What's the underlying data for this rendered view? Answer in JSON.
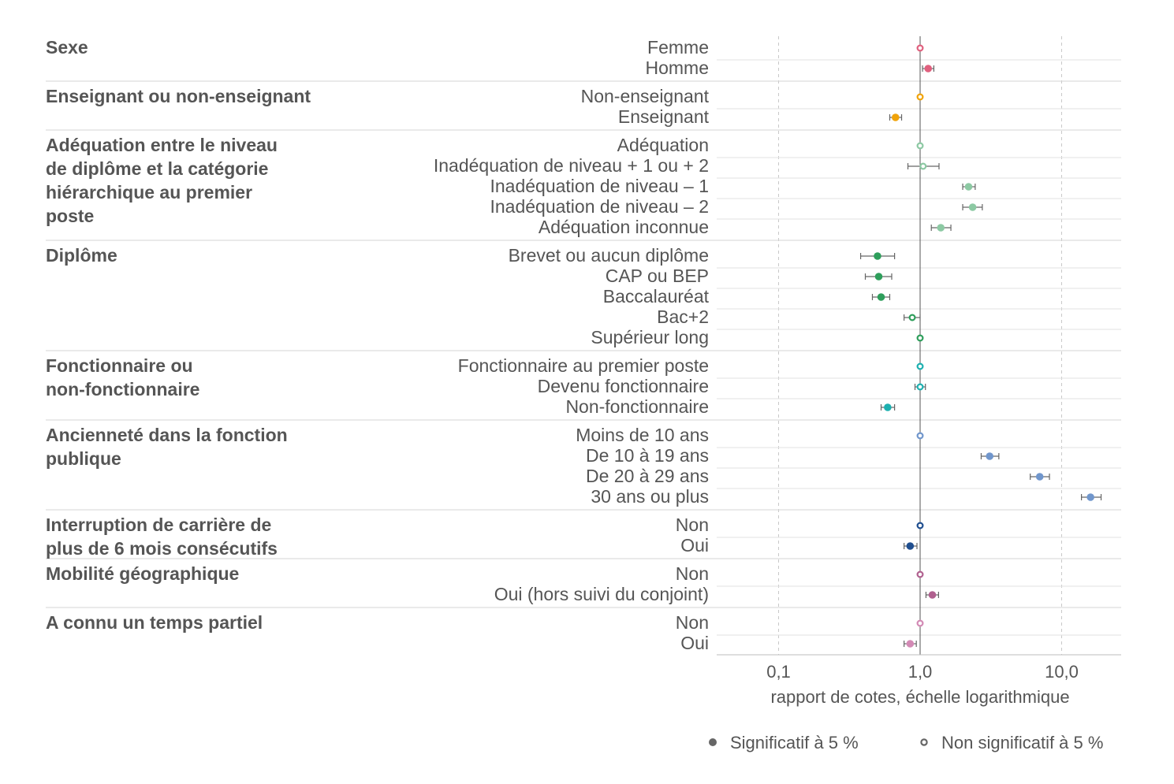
{
  "chart_data": {
    "type": "scatter",
    "xlabel": "rapport de cotes, échelle logarithmique",
    "x_scale": "log",
    "xlim": [
      0.04,
      25
    ],
    "x_ticks": [
      {
        "value": 0.1,
        "label": "0,1"
      },
      {
        "value": 1.0,
        "label": "1,0"
      },
      {
        "value": 10.0,
        "label": "10,0"
      }
    ],
    "reference_line": 1.0,
    "grid": true,
    "legend": {
      "position": "bottom-right",
      "significant": "Significatif à 5 %",
      "not_significant": "Non significatif à 5 %"
    },
    "groups": [
      {
        "label": "Sexe",
        "color": "#e0607e",
        "rows": [
          {
            "label": "Femme",
            "value": 1.0,
            "low": 1.0,
            "high": 1.0,
            "significant": false
          },
          {
            "label": "Homme",
            "value": 1.14,
            "low": 1.04,
            "high": 1.25,
            "significant": true
          }
        ]
      },
      {
        "label": "Enseignant ou non-enseignant",
        "color": "#f0a30a",
        "rows": [
          {
            "label": "Non-enseignant",
            "value": 1.0,
            "low": 1.0,
            "high": 1.0,
            "significant": false
          },
          {
            "label": "Enseignant",
            "value": 0.67,
            "low": 0.61,
            "high": 0.74,
            "significant": true
          }
        ]
      },
      {
        "label": "Adéquation entre le niveau de diplôme et la catégorie hiérarchique au premier poste",
        "color": "#8cc9a3",
        "rows": [
          {
            "label": "Adéquation",
            "value": 1.0,
            "low": 1.0,
            "high": 1.0,
            "significant": false
          },
          {
            "label": "Inadéquation de niveau + 1 ou + 2",
            "value": 1.05,
            "low": 0.82,
            "high": 1.36,
            "significant": false
          },
          {
            "label": "Inadéquation de niveau – 1",
            "value": 2.2,
            "low": 2.0,
            "high": 2.45,
            "significant": true
          },
          {
            "label": "Inadéquation de niveau – 2",
            "value": 2.35,
            "low": 2.0,
            "high": 2.75,
            "significant": true
          },
          {
            "label": "Adéquation inconnue",
            "value": 1.4,
            "low": 1.2,
            "high": 1.65,
            "significant": true
          }
        ]
      },
      {
        "label": "Diplôme",
        "color": "#2e9e5b",
        "rows": [
          {
            "label": "Brevet ou aucun diplôme",
            "value": 0.5,
            "low": 0.38,
            "high": 0.66,
            "significant": true
          },
          {
            "label": "CAP ou BEP",
            "value": 0.51,
            "low": 0.41,
            "high": 0.63,
            "significant": true
          },
          {
            "label": "Baccalauréat",
            "value": 0.53,
            "low": 0.46,
            "high": 0.61,
            "significant": true
          },
          {
            "label": "Bac+2",
            "value": 0.88,
            "low": 0.77,
            "high": 1.0,
            "significant": false
          },
          {
            "label": "Supérieur long",
            "value": 1.0,
            "low": 1.0,
            "high": 1.0,
            "significant": false
          }
        ]
      },
      {
        "label": "Fonctionnaire ou non-fonctionnaire",
        "color": "#1db0b0",
        "rows": [
          {
            "label": "Fonctionnaire au premier poste",
            "value": 1.0,
            "low": 1.0,
            "high": 1.0,
            "significant": false
          },
          {
            "label": "Devenu fonctionnaire",
            "value": 1.0,
            "low": 0.92,
            "high": 1.09,
            "significant": false
          },
          {
            "label": "Non-fonctionnaire",
            "value": 0.59,
            "low": 0.53,
            "high": 0.66,
            "significant": true
          }
        ]
      },
      {
        "label": "Ancienneté dans la fonction publique",
        "color": "#7096cc",
        "rows": [
          {
            "label": "Moins de 10 ans",
            "value": 1.0,
            "low": 1.0,
            "high": 1.0,
            "significant": false
          },
          {
            "label": "De 10 à 19 ans",
            "value": 3.1,
            "low": 2.7,
            "high": 3.6,
            "significant": true
          },
          {
            "label": "De 20 à 29 ans",
            "value": 7.0,
            "low": 6.0,
            "high": 8.2,
            "significant": true
          },
          {
            "label": "30 ans ou plus",
            "value": 16.0,
            "low": 13.8,
            "high": 19.0,
            "significant": true
          }
        ]
      },
      {
        "label": "Interruption de carrière de plus de 6 mois consécutifs",
        "color": "#1f4e8f",
        "rows": [
          {
            "label": "Non",
            "value": 1.0,
            "low": 1.0,
            "high": 1.0,
            "significant": false
          },
          {
            "label": "Oui",
            "value": 0.85,
            "low": 0.77,
            "high": 0.95,
            "significant": true
          }
        ]
      },
      {
        "label": "Mobilité géographique",
        "color": "#b0608f",
        "rows": [
          {
            "label": "Non",
            "value": 1.0,
            "low": 1.0,
            "high": 1.0,
            "significant": false
          },
          {
            "label": "Oui (hors suivi du conjoint)",
            "value": 1.22,
            "low": 1.1,
            "high": 1.35,
            "significant": true
          }
        ]
      },
      {
        "label": "A connu un temps partiel",
        "color": "#d38ab5",
        "rows": [
          {
            "label": "Non",
            "value": 1.0,
            "low": 1.0,
            "high": 1.0,
            "significant": false
          },
          {
            "label": "Oui",
            "value": 0.85,
            "low": 0.77,
            "high": 0.94,
            "significant": true
          }
        ]
      }
    ]
  }
}
